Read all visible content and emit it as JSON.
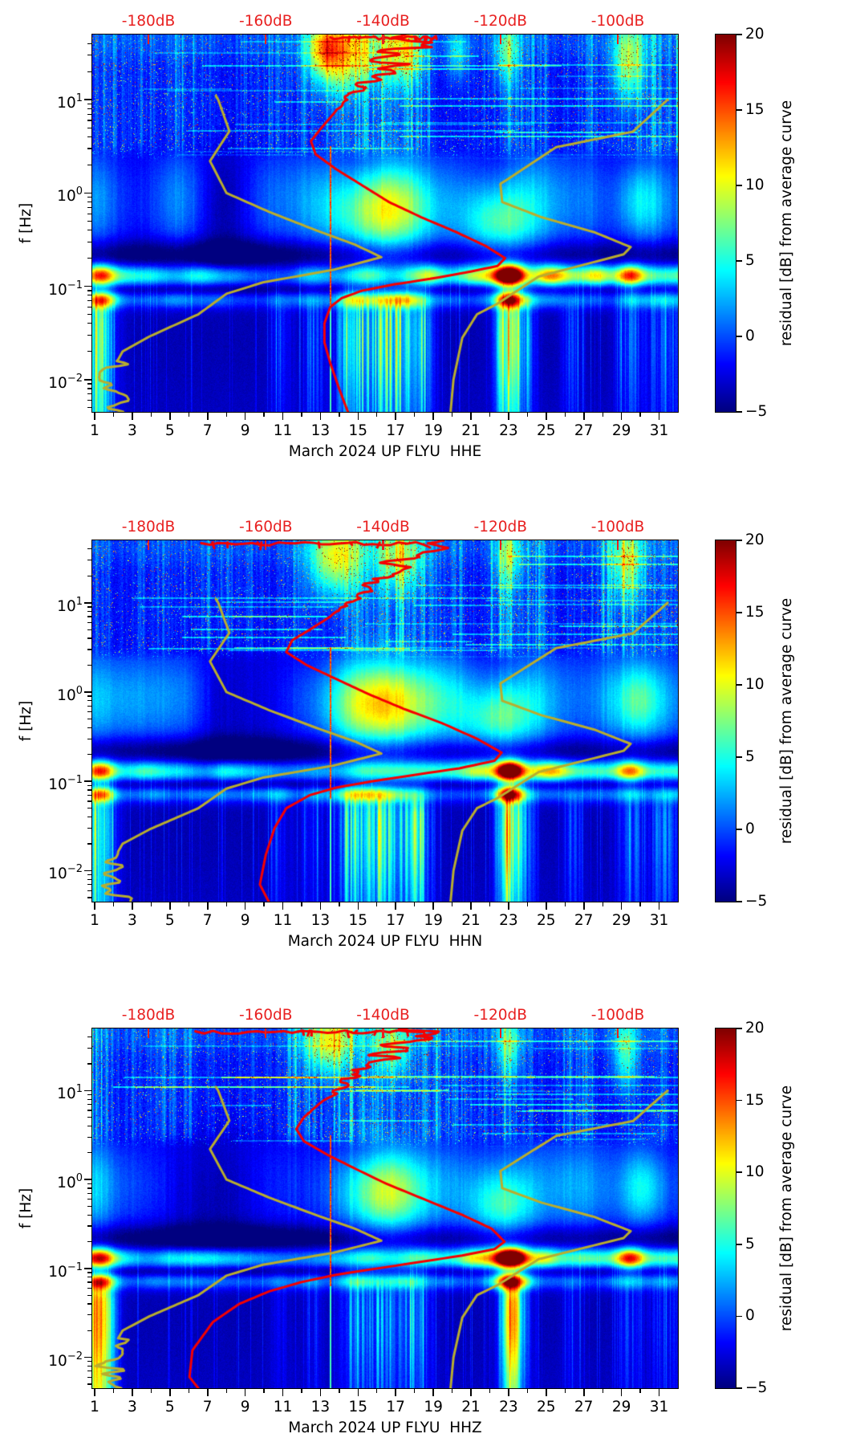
{
  "figure": {
    "background": "#ffffff",
    "station_line": "UP FLYU",
    "panels": [
      {
        "channel": "HHE",
        "xlabel": "March 2024 UP FLYU  HHE"
      },
      {
        "channel": "HHN",
        "xlabel": "March 2024 UP FLYU  HHN"
      },
      {
        "channel": "HHZ",
        "xlabel": "March 2024 UP FLYU  HHZ"
      }
    ],
    "y_axis": {
      "label": "f [Hz]",
      "tick_exponents": [
        1,
        0,
        -1,
        -2
      ],
      "scale": "log",
      "range_hz": [
        0.0045,
        50
      ]
    },
    "x_axis": {
      "tick_labels": [
        "1",
        "3",
        "5",
        "7",
        "9",
        "11",
        "13",
        "15",
        "17",
        "19",
        "21",
        "23",
        "25",
        "27",
        "29",
        "31"
      ],
      "tick_values": [
        1,
        3,
        5,
        7,
        9,
        11,
        13,
        15,
        17,
        19,
        21,
        23,
        25,
        27,
        29,
        31
      ],
      "minor_tick_values": [
        2,
        4,
        6,
        8,
        10,
        12,
        14,
        16,
        18,
        20,
        22,
        24,
        26,
        28,
        30
      ]
    },
    "top_axis": {
      "color": "#e82020",
      "tick_labels": [
        "-180dB",
        "-160dB",
        "-140dB",
        "-120dB",
        "-100dB"
      ],
      "tick_values": [
        -180,
        -160,
        -140,
        -120,
        -100
      ]
    },
    "colorbar": {
      "label": "residual [dB] from average curve",
      "tick_labels": [
        "20",
        "15",
        "10",
        "5",
        "0",
        "−5"
      ],
      "tick_values": [
        20,
        15,
        10,
        5,
        0,
        -5
      ],
      "vmin": -5,
      "vmax": 20,
      "colormap": "jet"
    }
  },
  "chart_data": {
    "type": "heatmap",
    "title": "",
    "description": "Daily seismic power spectral density residual spectrograms (jet colormap) for station UP FLYU, March 2024, channels HHE/HHN/HHZ. Color = residual [dB] from average curve (-5..20). Red curve = station median PSD read against the red top dB axis; dark-yellow curves = Peterson NLNM (left) and NHNM (right) noise models.",
    "x": {
      "unit": "day of March 2024",
      "range_days": [
        0.87,
        32
      ]
    },
    "y": {
      "unit": "Hz",
      "scale": "log",
      "range": [
        0.0045,
        50
      ]
    },
    "z": {
      "label": "residual [dB] from average curve",
      "range": [
        -5,
        20
      ],
      "colormap": "jet"
    },
    "top_axis_db": {
      "ticks": [
        -180,
        -160,
        -140,
        -120,
        -100
      ],
      "axis_range": [
        -191.6,
        -89.5
      ]
    },
    "channels": [
      "HHE",
      "HHN",
      "HHZ"
    ],
    "noise_models": {
      "color": "#b9ad2e",
      "nlnm_points_f_db": [
        [
          11,
          -168.5
        ],
        [
          10,
          -168.1
        ],
        [
          4.6,
          -166.2
        ],
        [
          2.2,
          -169.5
        ],
        [
          1.0,
          -166.7
        ],
        [
          0.63,
          -159.5
        ],
        [
          0.4,
          -151.5
        ],
        [
          0.28,
          -144.8
        ],
        [
          0.205,
          -140.3
        ],
        [
          0.15,
          -148.5
        ],
        [
          0.11,
          -160.5
        ],
        [
          0.083,
          -166.7
        ],
        [
          0.05,
          -171.5
        ],
        [
          0.029,
          -179.8
        ],
        [
          0.02,
          -184.4
        ],
        [
          0.0098,
          -187.1
        ],
        [
          0.0045,
          -184.8
        ]
      ],
      "nhnm_points_f_db": [
        [
          10,
          -91.5
        ],
        [
          4.55,
          -97.4
        ],
        [
          3.1,
          -110.5
        ],
        [
          1.25,
          -120.0
        ],
        [
          0.8,
          -119.7
        ],
        [
          0.55,
          -113
        ],
        [
          0.38,
          -104
        ],
        [
          0.263,
          -97.8
        ],
        [
          0.22,
          -99
        ],
        [
          0.127,
          -113.5
        ],
        [
          0.065,
          -120.5
        ],
        [
          0.05,
          -124
        ],
        [
          0.028,
          -126.5
        ],
        [
          0.01,
          -128
        ],
        [
          0.0045,
          -128.5
        ]
      ]
    },
    "median_psd": {
      "color": "#f50000",
      "per_channel": {
        "HHE": [
          [
            50,
            -132
          ],
          [
            38,
            -135
          ],
          [
            27,
            -138
          ],
          [
            20,
            -140.5
          ],
          [
            14,
            -143.5
          ],
          [
            10,
            -146
          ],
          [
            7,
            -148.5
          ],
          [
            5,
            -150.5
          ],
          [
            3.6,
            -152.3
          ],
          [
            2.6,
            -151.5
          ],
          [
            1.8,
            -148
          ],
          [
            1.2,
            -143.5
          ],
          [
            0.8,
            -139
          ],
          [
            0.55,
            -133.5
          ],
          [
            0.38,
            -127.5
          ],
          [
            0.27,
            -122.5
          ],
          [
            0.2,
            -119.2
          ],
          [
            0.165,
            -120.5
          ],
          [
            0.14,
            -126
          ],
          [
            0.12,
            -132
          ],
          [
            0.105,
            -138
          ],
          [
            0.09,
            -143.5
          ],
          [
            0.075,
            -147
          ],
          [
            0.06,
            -149
          ],
          [
            0.04,
            -150
          ],
          [
            0.025,
            -150
          ],
          [
            0.015,
            -149
          ],
          [
            0.008,
            -147.5
          ],
          [
            0.0045,
            -146
          ]
        ],
        "HHN": [
          [
            50,
            -132
          ],
          [
            38,
            -135
          ],
          [
            27,
            -138
          ],
          [
            20,
            -140
          ],
          [
            14,
            -143
          ],
          [
            10,
            -146
          ],
          [
            7,
            -149
          ],
          [
            5,
            -152.5
          ],
          [
            3.8,
            -155.5
          ],
          [
            2.8,
            -156.5
          ],
          [
            2.0,
            -153
          ],
          [
            1.4,
            -148
          ],
          [
            0.95,
            -142.5
          ],
          [
            0.65,
            -136.5
          ],
          [
            0.45,
            -130
          ],
          [
            0.3,
            -124
          ],
          [
            0.21,
            -119.8
          ],
          [
            0.17,
            -121
          ],
          [
            0.14,
            -127
          ],
          [
            0.12,
            -134
          ],
          [
            0.1,
            -142
          ],
          [
            0.085,
            -148
          ],
          [
            0.07,
            -152.5
          ],
          [
            0.05,
            -156.5
          ],
          [
            0.03,
            -158.5
          ],
          [
            0.015,
            -160
          ],
          [
            0.007,
            -161
          ],
          [
            0.0045,
            -159.5
          ]
        ],
        "HHZ": [
          [
            50,
            -133
          ],
          [
            38,
            -136
          ],
          [
            27,
            -139
          ],
          [
            20,
            -141.5
          ],
          [
            14,
            -145
          ],
          [
            10,
            -148
          ],
          [
            7,
            -151
          ],
          [
            5,
            -153.5
          ],
          [
            3.7,
            -154.8
          ],
          [
            2.7,
            -153.5
          ],
          [
            1.9,
            -149.5
          ],
          [
            1.3,
            -144.5
          ],
          [
            0.9,
            -139.5
          ],
          [
            0.6,
            -133
          ],
          [
            0.4,
            -126.5
          ],
          [
            0.28,
            -121.5
          ],
          [
            0.2,
            -119.3
          ],
          [
            0.165,
            -121
          ],
          [
            0.14,
            -126.5
          ],
          [
            0.12,
            -133
          ],
          [
            0.1,
            -141
          ],
          [
            0.085,
            -148
          ],
          [
            0.07,
            -154
          ],
          [
            0.055,
            -159.5
          ],
          [
            0.04,
            -164.5
          ],
          [
            0.025,
            -169
          ],
          [
            0.012,
            -172.5
          ],
          [
            0.006,
            -173
          ],
          [
            0.0045,
            -171.5
          ]
        ]
      }
    },
    "features": {
      "storm_day_gaussians": [
        [
          1.4,
          0.5,
          0.75
        ],
        [
          10.8,
          0.4,
          0.35
        ],
        [
          12.6,
          0.4,
          0.4
        ],
        [
          14.7,
          0.55,
          1.0
        ],
        [
          15.9,
          0.7,
          0.8
        ],
        [
          17.4,
          0.8,
          1.0
        ],
        [
          18.4,
          0.4,
          0.5
        ],
        [
          23.05,
          0.45,
          1.1
        ],
        [
          24.0,
          0.35,
          0.5
        ],
        [
          26.4,
          0.35,
          0.4
        ],
        [
          29.4,
          0.45,
          0.55
        ],
        [
          31.3,
          0.6,
          0.5
        ]
      ],
      "microseism_band_hz": [
        0.09,
        0.18
      ],
      "hottest_spot": {
        "day": 23,
        "f_hz": 0.13,
        "residual_db": 20
      }
    },
    "render": {
      "panels": [
        {
          "seed": 11,
          "lf_gain": 15,
          "left_amp": 5,
          "dark_plume": 2.4,
          "top_wiggle_db": [
            -149,
            -131
          ],
          "plume": [
            [
              16.1,
              1.8,
              -0.2,
              0.33,
              10
            ],
            [
              22.4,
              1.3,
              -0.32,
              0.28,
              7
            ],
            [
              30.0,
              0.9,
              -0.1,
              0.3,
              5
            ]
          ],
          "hf_blobs": [
            [
              14.2,
              1.2,
              1.5,
              0.28,
              12
            ],
            [
              17.3,
              0.8,
              1.52,
              0.26,
              9
            ],
            [
              13.2,
              0.5,
              1.55,
              0.2,
              7
            ],
            [
              29.4,
              0.6,
              1.43,
              0.3,
              9
            ],
            [
              22.9,
              0.5,
              1.5,
              0.25,
              6
            ],
            [
              20.3,
              0.4,
              1.5,
              0.2,
              5
            ]
          ],
          "band1_hotspots": [
            [
              1.35,
              0.5,
              11
            ],
            [
              23.05,
              0.55,
              24
            ],
            [
              29.45,
              0.5,
              11
            ],
            [
              25.2,
              0.6,
              6
            ],
            [
              27.8,
              0.5,
              5
            ],
            [
              21.3,
              0.7,
              5
            ],
            [
              18.9,
              0.5,
              4
            ]
          ],
          "band2_hotspots": [
            [
              23.05,
              0.5,
              16
            ],
            [
              1.5,
              0.55,
              8
            ],
            [
              14.8,
              0.8,
              5
            ],
            [
              17.3,
              0.8,
              5
            ]
          ],
          "lf_hotspots": [
            [
              23.05,
              0.4,
              6
            ]
          ],
          "hairlines": [
            13.55
          ]
        },
        {
          "seed": 47,
          "lf_gain": 14,
          "left_amp": 5,
          "dark_plume": 2.4,
          "top_wiggle_db": [
            -171,
            -133
          ],
          "plume": [
            [
              16.3,
              2.0,
              -0.15,
              0.35,
              11
            ],
            [
              22.4,
              1.3,
              -0.3,
              0.28,
              7
            ],
            [
              30.0,
              0.9,
              -0.1,
              0.3,
              5
            ]
          ],
          "hf_blobs": [
            [
              13.8,
              1.0,
              1.5,
              0.3,
              11
            ],
            [
              17.2,
              0.9,
              1.5,
              0.28,
              8
            ],
            [
              29.3,
              0.6,
              1.45,
              0.3,
              8
            ],
            [
              23.0,
              0.5,
              1.5,
              0.25,
              6
            ]
          ],
          "band1_hotspots": [
            [
              1.35,
              0.5,
              11
            ],
            [
              23.05,
              0.5,
              23
            ],
            [
              29.45,
              0.5,
              9
            ],
            [
              25.2,
              0.6,
              5
            ],
            [
              21.3,
              0.6,
              4
            ]
          ],
          "band2_hotspots": [
            [
              23.05,
              0.5,
              15
            ],
            [
              1.5,
              0.5,
              7
            ],
            [
              15.5,
              1.0,
              5
            ]
          ],
          "lf_hotspots": [
            [
              23.05,
              0.4,
              6
            ]
          ],
          "hairlines": [
            13.55
          ]
        },
        {
          "seed": 83,
          "lf_gain": 8,
          "left_amp": 8,
          "dark_plume": 3.2,
          "top_wiggle_db": [
            -172,
            -133
          ],
          "plume": [
            [
              16.3,
              1.6,
              -0.15,
              0.33,
              9
            ],
            [
              22.6,
              1.2,
              -0.3,
              0.28,
              6
            ],
            [
              30.2,
              0.8,
              -0.1,
              0.3,
              5
            ]
          ],
          "hf_blobs": [
            [
              13.5,
              0.9,
              1.55,
              0.25,
              10
            ],
            [
              16.8,
              0.7,
              1.5,
              0.25,
              7
            ],
            [
              29.2,
              0.5,
              1.45,
              0.3,
              7
            ],
            [
              23.0,
              0.5,
              1.5,
              0.25,
              6
            ]
          ],
          "band1_hotspots": [
            [
              1.3,
              0.55,
              13
            ],
            [
              23.1,
              0.6,
              25
            ],
            [
              29.45,
              0.5,
              12
            ],
            [
              25.0,
              0.5,
              5
            ],
            [
              21.3,
              0.6,
              4
            ]
          ],
          "band2_hotspots": [
            [
              23.1,
              0.55,
              17
            ],
            [
              1.4,
              0.5,
              6
            ]
          ],
          "lf_hotspots": [
            [
              23.2,
              0.35,
              14
            ],
            [
              1.3,
              0.5,
              8
            ]
          ],
          "hairlines": [
            13.55
          ]
        }
      ]
    }
  }
}
